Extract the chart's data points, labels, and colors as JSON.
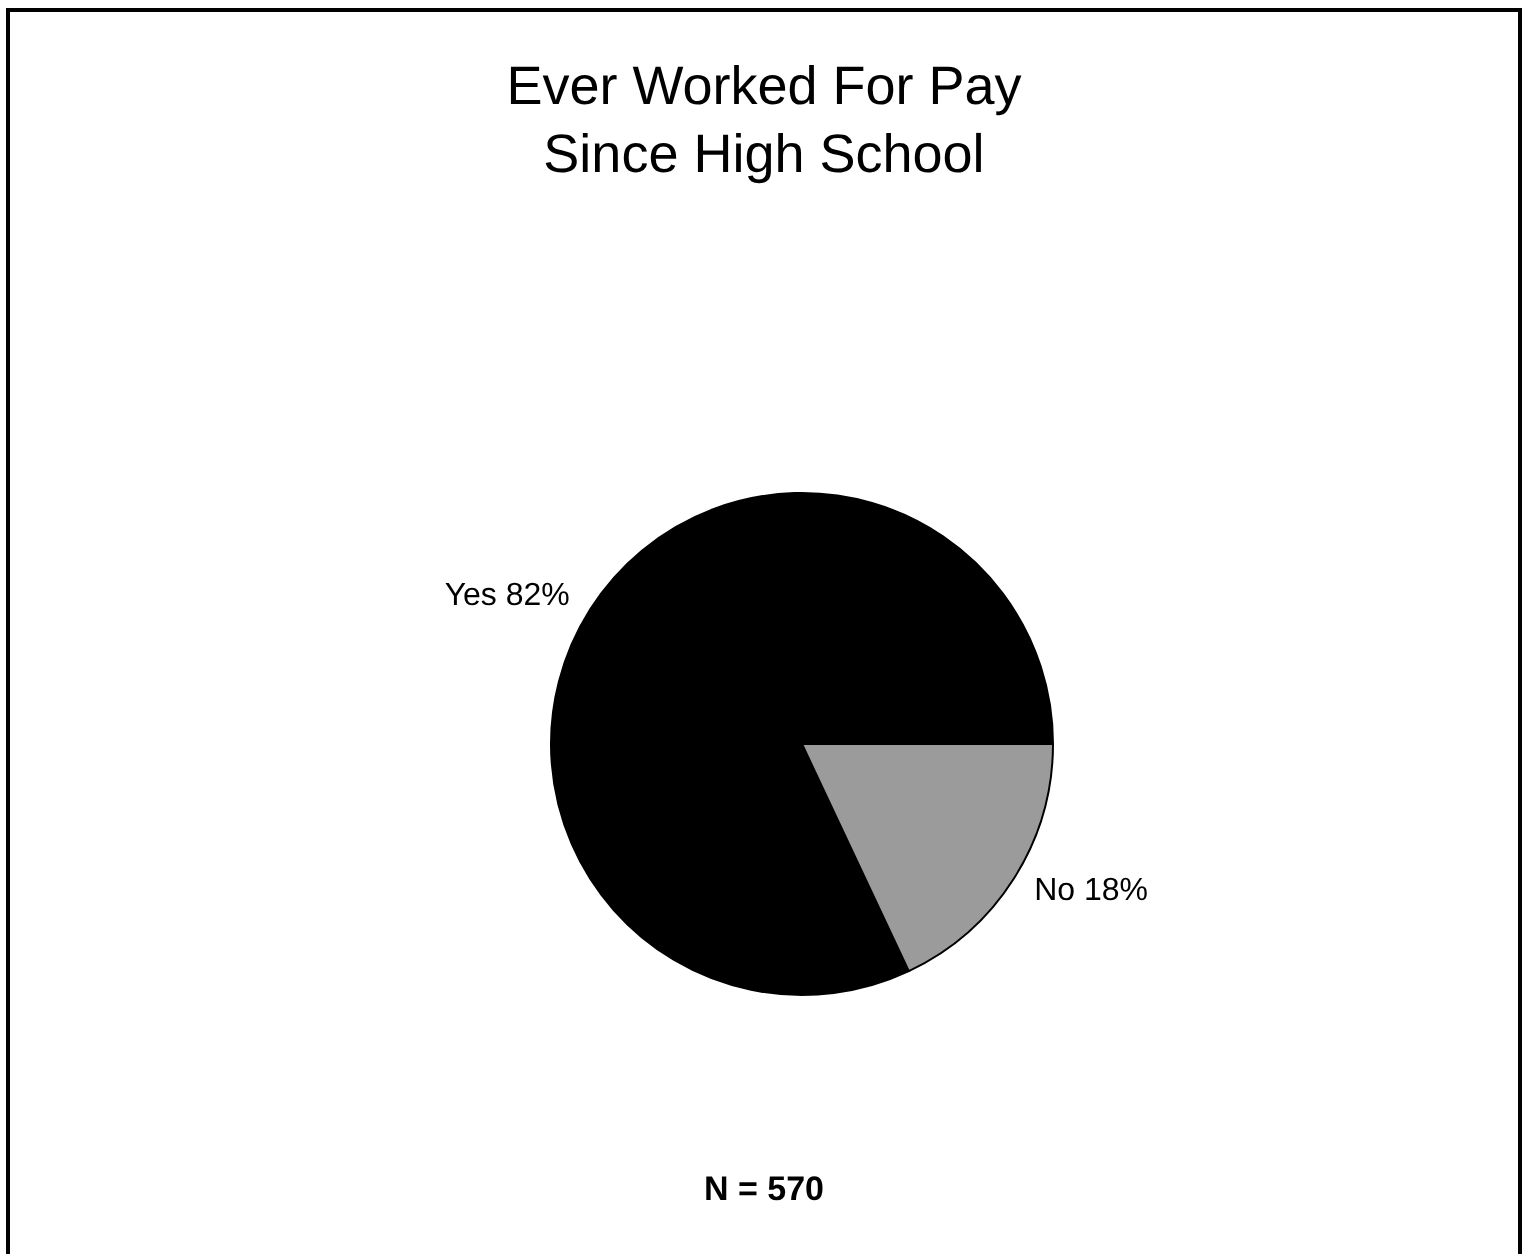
{
  "chart_data": {
    "type": "pie",
    "title": "Ever Worked For Pay\nSince High School",
    "categories": [
      "Yes",
      "No"
    ],
    "values": [
      82,
      18
    ],
    "value_labels": [
      "82%",
      "18%"
    ],
    "colors": [
      "#000000",
      "#9b9b9b"
    ],
    "annotations": [
      "N = 570"
    ]
  }
}
